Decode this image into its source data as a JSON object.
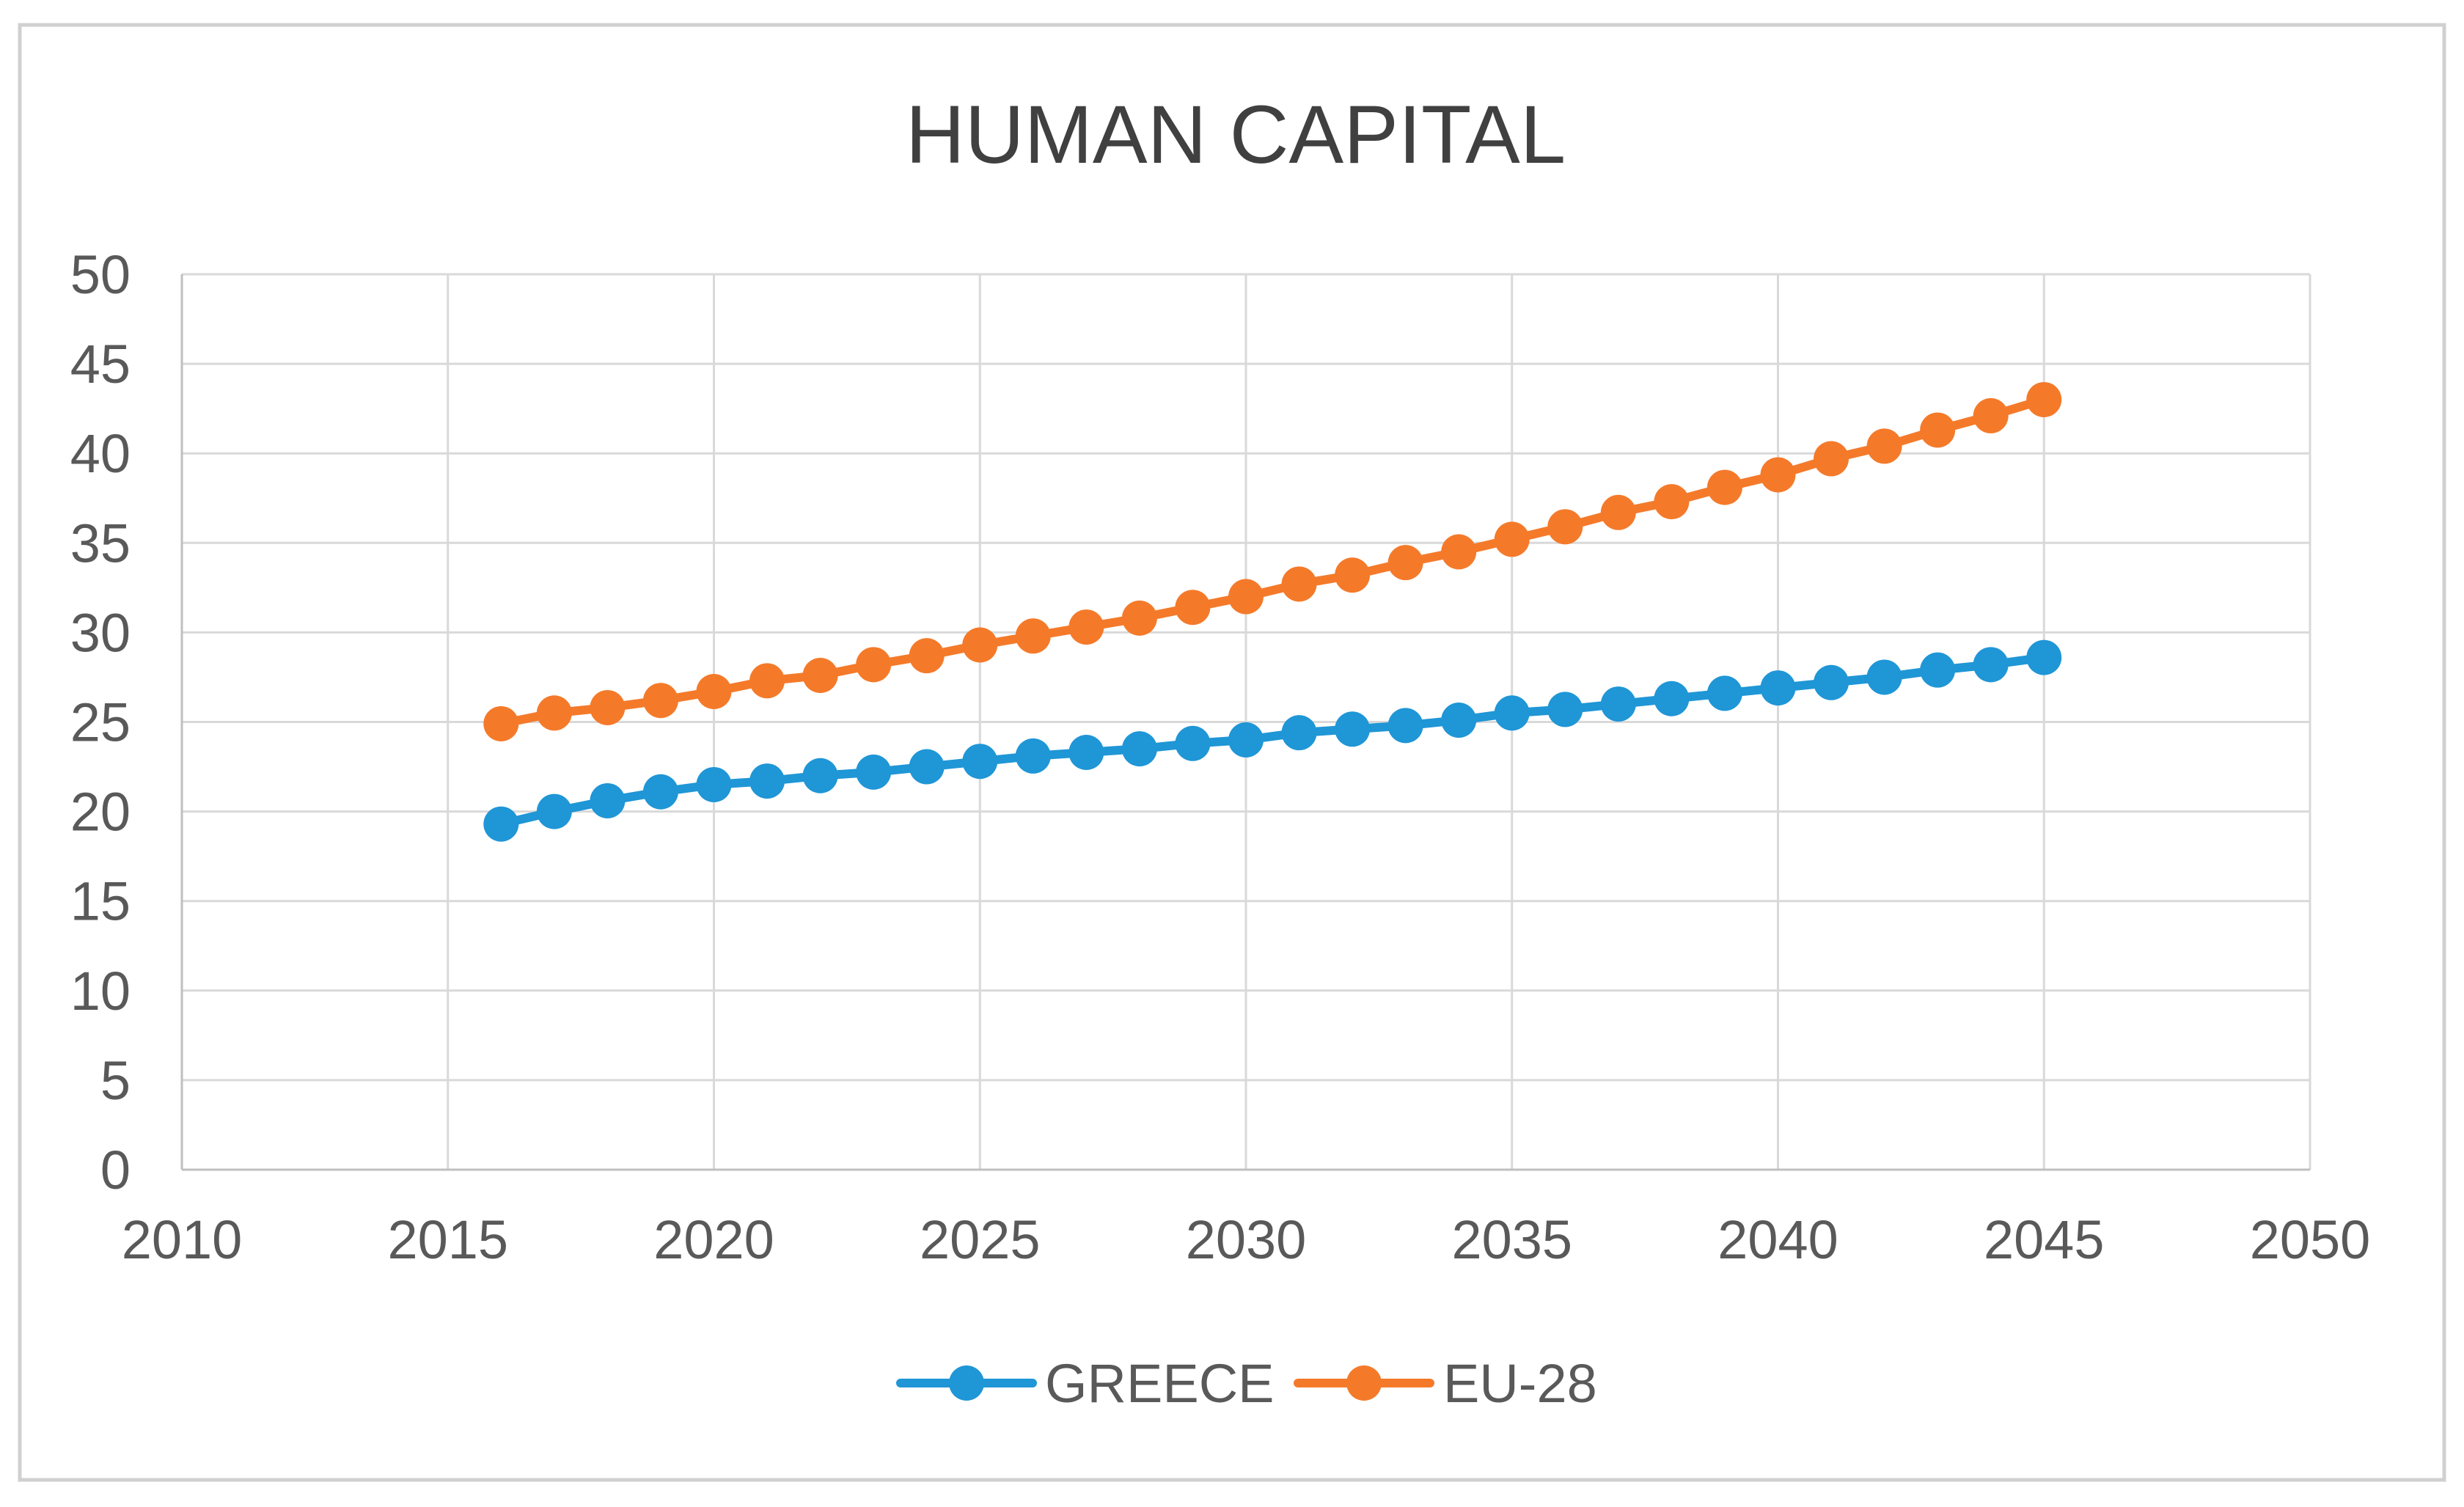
{
  "chart_data": {
    "type": "line",
    "title": "HUMAN CAPITAL",
    "xlabel": "",
    "ylabel": "",
    "xlim": [
      2010,
      2050
    ],
    "ylim": [
      0,
      50
    ],
    "x_ticks": [
      2010,
      2015,
      2020,
      2025,
      2030,
      2035,
      2040,
      2045,
      2050
    ],
    "y_ticks": [
      0,
      5,
      10,
      15,
      20,
      25,
      30,
      35,
      40,
      45,
      50
    ],
    "x_tick_labels": [
      "2010",
      "2015",
      "2020",
      "2025",
      "2030",
      "2035",
      "2040",
      "2045",
      "2050"
    ],
    "y_tick_labels": [
      "0",
      "5",
      "10",
      "15",
      "20",
      "25",
      "30",
      "35",
      "40",
      "45",
      "50"
    ],
    "grid": true,
    "legend_position": "bottom",
    "x": [
      2016,
      2017,
      2018,
      2019,
      2020,
      2021,
      2022,
      2023,
      2024,
      2025,
      2026,
      2027,
      2028,
      2029,
      2030,
      2031,
      2032,
      2033,
      2034,
      2035,
      2036,
      2037,
      2038,
      2039,
      2040,
      2041,
      2042,
      2043,
      2044,
      2045
    ],
    "series": [
      {
        "name": "GREECE",
        "color": "#1f96d6",
        "values": [
          19.3,
          20.0,
          20.6,
          21.1,
          21.5,
          21.7,
          22.0,
          22.2,
          22.5,
          22.8,
          23.1,
          23.3,
          23.5,
          23.8,
          24.0,
          24.4,
          24.6,
          24.8,
          25.1,
          25.5,
          25.7,
          26.0,
          26.3,
          26.6,
          26.9,
          27.2,
          27.5,
          27.9,
          28.2,
          28.6
        ]
      },
      {
        "name": "EU-28",
        "color": "#f47a2a",
        "values": [
          24.9,
          25.5,
          25.8,
          26.2,
          26.7,
          27.3,
          27.6,
          28.2,
          28.7,
          29.3,
          29.8,
          30.3,
          30.8,
          31.4,
          32.0,
          32.7,
          33.2,
          33.9,
          34.5,
          35.2,
          35.9,
          36.7,
          37.3,
          38.1,
          38.8,
          39.7,
          40.4,
          41.3,
          42.1,
          43.0
        ]
      }
    ]
  }
}
